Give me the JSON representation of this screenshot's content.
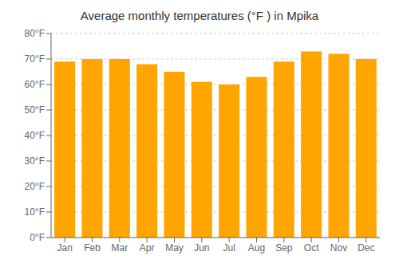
{
  "chart_data": {
    "type": "bar",
    "title": "Average monthly temperatures (°F ) in Mpika",
    "categories": [
      "Jan",
      "Feb",
      "Mar",
      "Apr",
      "May",
      "Jun",
      "Jul",
      "Aug",
      "Sep",
      "Oct",
      "Nov",
      "Dec"
    ],
    "values": [
      69,
      70,
      70,
      68,
      65,
      61,
      60,
      63,
      69,
      73,
      72,
      70
    ],
    "color": "#FFA500",
    "ylim": [
      0,
      80
    ],
    "yticks": [
      {
        "value": 0,
        "label": "0°F"
      },
      {
        "value": 10,
        "label": "10°F"
      },
      {
        "value": 20,
        "label": "20°F"
      },
      {
        "value": 30,
        "label": "30°F"
      },
      {
        "value": 40,
        "label": "40°F"
      },
      {
        "value": 50,
        "label": "50°F"
      },
      {
        "value": 60,
        "label": "60°F"
      },
      {
        "value": 70,
        "label": "70°F"
      },
      {
        "value": 80,
        "label": "80°F"
      }
    ],
    "grid": true
  }
}
